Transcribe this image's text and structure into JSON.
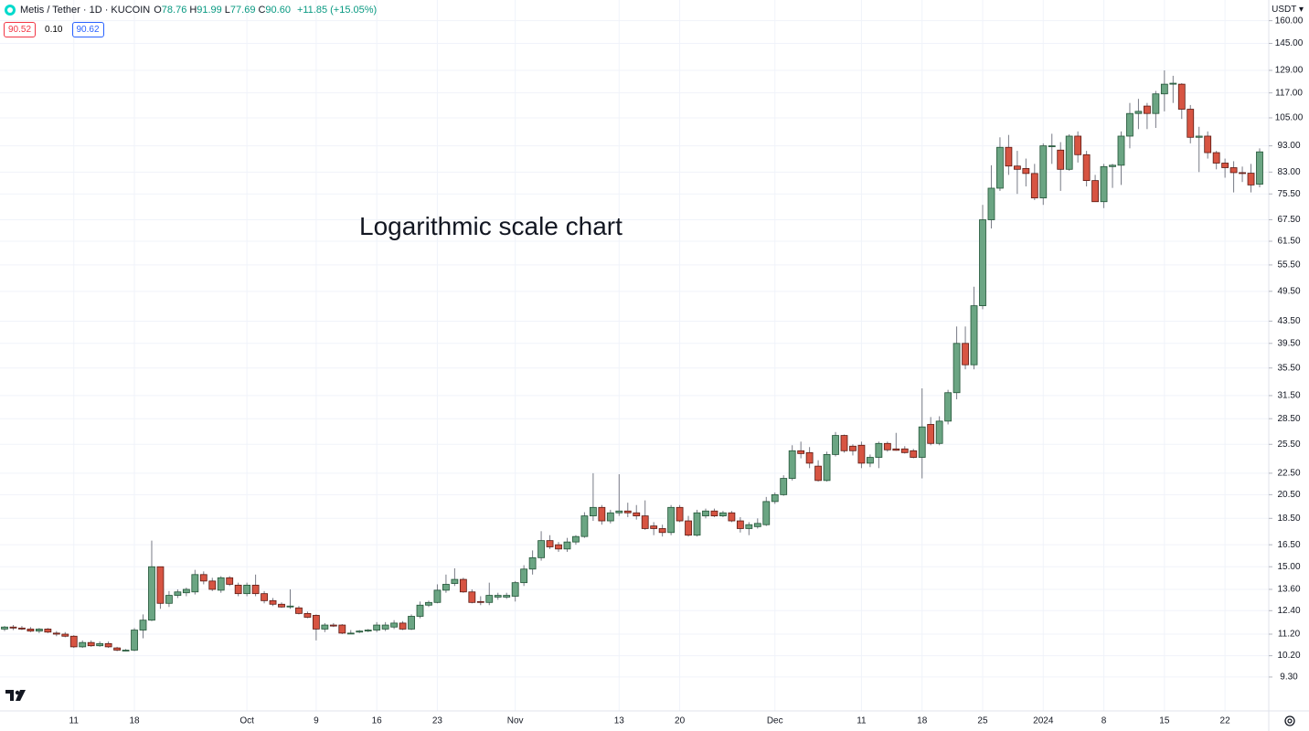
{
  "chart_data": {
    "type": "candlestick",
    "symbol": "Metis / Tether · 1D · KUCOIN",
    "header_ohlc": [
      {
        "key": "O",
        "value": "78.76"
      },
      {
        "key": "H",
        "value": "91.99"
      },
      {
        "key": "L",
        "value": "77.69"
      },
      {
        "key": "C",
        "value": "90.60"
      }
    ],
    "change": "+11.85 (+15.05%)",
    "buttons": [
      "90.52",
      "0.10",
      "90.62"
    ],
    "annotation": "Logarithmic scale chart",
    "currency": "USDT",
    "log": true,
    "grid": true,
    "up_color": "#6ba583",
    "down_color": "#d75442",
    "categories": [
      null,
      null,
      null,
      null,
      null,
      null,
      null,
      null,
      "11",
      null,
      null,
      null,
      null,
      null,
      null,
      "18",
      null,
      null,
      null,
      null,
      null,
      null,
      null,
      null,
      null,
      null,
      null,
      null,
      "Oct",
      null,
      null,
      null,
      null,
      null,
      null,
      null,
      "9",
      null,
      null,
      null,
      null,
      null,
      null,
      "16",
      null,
      null,
      null,
      null,
      null,
      null,
      "23",
      null,
      null,
      null,
      null,
      null,
      null,
      null,
      null,
      "Nov",
      null,
      null,
      null,
      null,
      null,
      null,
      null,
      null,
      null,
      null,
      null,
      "13",
      null,
      null,
      null,
      null,
      null,
      null,
      "20",
      null,
      null,
      null,
      null,
      null,
      null,
      null,
      null,
      null,
      null,
      "Dec",
      null,
      null,
      null,
      null,
      null,
      null,
      null,
      null,
      null,
      "11",
      null,
      null,
      null,
      null,
      null,
      null,
      "18",
      null,
      null,
      null,
      null,
      null,
      null,
      "25",
      null,
      null,
      null,
      null,
      null,
      null,
      "2024",
      null,
      null,
      null,
      null,
      null,
      null,
      "8",
      null,
      null,
      null,
      null,
      null,
      null,
      "15",
      null,
      null,
      null,
      null,
      null,
      null,
      "22",
      null,
      null,
      null,
      null
    ],
    "open": [
      11.45,
      11.55,
      11.5,
      11.45,
      11.35,
      11.45,
      11.25,
      11.2,
      11.1,
      10.6,
      10.8,
      10.65,
      10.75,
      10.55,
      10.45,
      10.45,
      11.4,
      11.9,
      15.0,
      12.8,
      13.25,
      13.4,
      13.45,
      14.5,
      14.1,
      13.55,
      14.3,
      13.85,
      13.35,
      13.85,
      13.35,
      12.95,
      12.75,
      12.6,
      12.55,
      12.25,
      12.15,
      11.45,
      11.65,
      11.65,
      11.25,
      11.3,
      11.35,
      11.4,
      11.45,
      11.55,
      11.75,
      11.45,
      12.1,
      12.7,
      12.85,
      13.55,
      13.95,
      14.2,
      13.45,
      12.9,
      12.85,
      13.15,
      13.15,
      13.2,
      14.0,
      14.85,
      15.6,
      16.8,
      16.5,
      16.2,
      16.7,
      17.1,
      18.7,
      19.4,
      18.3,
      18.95,
      19.1,
      18.95,
      18.7,
      17.9,
      17.7,
      17.4,
      19.4,
      18.3,
      17.2,
      18.7,
      19.1,
      18.7,
      18.95,
      18.3,
      17.7,
      17.85,
      18.0,
      19.9,
      20.5,
      22.0,
      24.8,
      24.6,
      23.2,
      21.8,
      24.4,
      26.5,
      25.3,
      25.4,
      23.5,
      24.1,
      25.6,
      25.0,
      25.0,
      24.8,
      24.1,
      27.8,
      25.6,
      28.2,
      31.9,
      39.5,
      36.0,
      46.5,
      67.5,
      77.4,
      92.4,
      85.2,
      84.3,
      82.5,
      74.2,
      93.0,
      91.3,
      84.0,
      97.0,
      89.5,
      80.0,
      73.0,
      85.0,
      85.5,
      97.0,
      107.0,
      110.5,
      107.0,
      116.5,
      121.5,
      121.5,
      109.0,
      96.5,
      97.0,
      90.3,
      86.3,
      84.6,
      82.8,
      82.6,
      78.76
    ],
    "high": [
      11.6,
      11.65,
      11.6,
      11.55,
      11.5,
      11.5,
      11.35,
      11.3,
      11.15,
      10.9,
      10.9,
      10.85,
      10.85,
      10.6,
      10.5,
      11.5,
      12.2,
      16.8,
      15.0,
      13.5,
      13.6,
      13.7,
      14.8,
      14.7,
      14.3,
      14.4,
      14.4,
      14.0,
      14.0,
      14.5,
      13.5,
      13.1,
      12.85,
      13.6,
      12.65,
      12.35,
      12.2,
      11.75,
      11.75,
      11.7,
      11.4,
      11.4,
      11.45,
      11.8,
      11.8,
      11.9,
      11.85,
      12.2,
      12.9,
      12.95,
      13.9,
      14.5,
      14.9,
      14.3,
      13.6,
      13.2,
      14.0,
      13.4,
      13.4,
      14.1,
      15.1,
      16.1,
      17.5,
      17.2,
      16.7,
      17.0,
      17.2,
      19.0,
      22.5,
      19.6,
      19.2,
      22.4,
      19.8,
      19.6,
      20.0,
      18.2,
      18.0,
      19.6,
      19.6,
      18.7,
      19.2,
      19.3,
      19.3,
      19.1,
      19.1,
      18.6,
      18.2,
      18.5,
      20.3,
      20.7,
      22.3,
      25.4,
      25.8,
      25.2,
      23.8,
      24.7,
      26.9,
      26.6,
      25.5,
      25.8,
      24.4,
      25.8,
      25.8,
      26.8,
      25.3,
      25.0,
      32.5,
      28.7,
      28.8,
      32.3,
      42.5,
      42.5,
      50.5,
      72.0,
      85.5,
      96.5,
      97.5,
      91.0,
      88.0,
      86.0,
      94.0,
      98.0,
      94.5,
      97.8,
      99.0,
      91.0,
      82.0,
      86.0,
      86.0,
      99.0,
      112.0,
      114.0,
      112.0,
      118.0,
      129.0,
      126.0,
      122.0,
      111.0,
      101.0,
      99.0,
      91.0,
      88.0,
      87.0,
      85.0,
      86.0,
      91.99
    ],
    "low": [
      11.35,
      11.4,
      11.4,
      11.3,
      11.25,
      11.25,
      11.1,
      11.05,
      10.55,
      10.55,
      10.6,
      10.6,
      10.55,
      10.4,
      10.4,
      10.4,
      11.0,
      11.85,
      12.5,
      12.6,
      13.1,
      13.2,
      13.3,
      13.9,
      13.5,
      13.4,
      13.8,
      13.2,
      13.2,
      13.2,
      12.8,
      12.65,
      12.55,
      12.5,
      12.2,
      12.0,
      10.9,
      11.3,
      11.55,
      11.2,
      11.2,
      11.25,
      11.3,
      11.3,
      11.35,
      11.45,
      11.4,
      11.4,
      12.0,
      12.6,
      12.8,
      13.4,
      13.8,
      13.4,
      12.8,
      12.7,
      12.7,
      13.0,
      13.05,
      12.9,
      13.8,
      14.5,
      15.4,
      16.2,
      16.0,
      16.0,
      16.5,
      17.0,
      18.3,
      18.0,
      18.1,
      18.7,
      18.6,
      18.4,
      17.6,
      17.2,
      17.1,
      17.2,
      18.2,
      17.1,
      17.1,
      18.5,
      18.6,
      18.6,
      18.2,
      17.4,
      17.2,
      17.7,
      17.9,
      19.7,
      20.4,
      21.8,
      24.0,
      23.0,
      21.7,
      21.7,
      24.2,
      24.6,
      24.3,
      23.0,
      23.1,
      23.0,
      24.7,
      24.8,
      24.5,
      24.0,
      22.0,
      25.4,
      25.4,
      27.8,
      31.0,
      35.3,
      35.3,
      45.8,
      65.0,
      76.5,
      82.0,
      75.5,
      78.0,
      73.5,
      72.0,
      86.0,
      76.5,
      83.5,
      86.5,
      78.0,
      73.0,
      71.0,
      77.5,
      78.5,
      92.0,
      100.0,
      100.0,
      100.5,
      108.0,
      112.0,
      104.5,
      94.0,
      83.0,
      88.0,
      84.0,
      81.0,
      76.0,
      79.5,
      76.0,
      77.69
    ],
    "close": [
      11.55,
      11.5,
      11.45,
      11.35,
      11.45,
      11.3,
      11.2,
      11.1,
      10.6,
      10.8,
      10.65,
      10.75,
      10.6,
      10.45,
      10.45,
      11.4,
      11.9,
      15.0,
      12.8,
      13.25,
      13.45,
      13.6,
      14.5,
      14.1,
      13.6,
      14.3,
      13.9,
      13.35,
      13.85,
      13.35,
      12.95,
      12.75,
      12.6,
      12.65,
      12.25,
      12.05,
      11.45,
      11.65,
      11.6,
      11.25,
      11.25,
      11.35,
      11.4,
      11.65,
      11.65,
      11.75,
      11.45,
      12.1,
      12.7,
      12.85,
      13.55,
      13.9,
      14.2,
      13.45,
      12.85,
      12.85,
      13.25,
      13.25,
      13.25,
      14.0,
      14.85,
      15.6,
      16.8,
      16.35,
      16.2,
      16.7,
      17.1,
      18.7,
      19.4,
      18.3,
      18.95,
      19.1,
      18.95,
      18.7,
      17.7,
      17.7,
      17.4,
      19.4,
      18.3,
      17.2,
      18.95,
      19.1,
      18.7,
      18.95,
      18.3,
      17.7,
      18.0,
      18.1,
      19.9,
      20.5,
      22.0,
      24.8,
      24.5,
      23.5,
      21.8,
      24.4,
      26.5,
      24.8,
      24.8,
      23.5,
      24.1,
      25.6,
      24.9,
      24.85,
      24.6,
      24.1,
      27.5,
      25.6,
      28.2,
      31.9,
      39.5,
      36.0,
      46.5,
      67.5,
      77.4,
      92.4,
      85.2,
      84.0,
      82.5,
      74.2,
      93.0,
      93.0,
      84.0,
      97.0,
      89.5,
      80.0,
      73.0,
      85.0,
      85.5,
      97.0,
      107.0,
      108.0,
      107.0,
      116.5,
      121.5,
      122.0,
      109.0,
      96.5,
      97.0,
      90.3,
      86.3,
      84.6,
      82.8,
      82.6,
      78.5,
      90.6
    ],
    "ylim": [
      8.03,
      175
    ],
    "yticks": [
      {
        "value": 160,
        "label": "160.00"
      },
      {
        "value": 145,
        "label": "145.00"
      },
      {
        "value": 129,
        "label": "129.00"
      },
      {
        "value": 117,
        "label": "117.00"
      },
      {
        "value": 105,
        "label": "105.00"
      },
      {
        "value": 93,
        "label": "93.00"
      },
      {
        "value": 83,
        "label": "83.00"
      },
      {
        "value": 75.5,
        "label": "75.50"
      },
      {
        "value": 67.5,
        "label": "67.50"
      },
      {
        "value": 61.5,
        "label": "61.50"
      },
      {
        "value": 55.5,
        "label": "55.50"
      },
      {
        "value": 49.5,
        "label": "49.50"
      },
      {
        "value": 43.5,
        "label": "43.50"
      },
      {
        "value": 39.5,
        "label": "39.50"
      },
      {
        "value": 35.5,
        "label": "35.50"
      },
      {
        "value": 31.5,
        "label": "31.50"
      },
      {
        "value": 28.5,
        "label": "28.50"
      },
      {
        "value": 25.5,
        "label": "25.50"
      },
      {
        "value": 22.5,
        "label": "22.50"
      },
      {
        "value": 20.5,
        "label": "20.50"
      },
      {
        "value": 18.5,
        "label": "18.50"
      },
      {
        "value": 16.5,
        "label": "16.50"
      },
      {
        "value": 15,
        "label": "15.00"
      },
      {
        "value": 13.6,
        "label": "13.60"
      },
      {
        "value": 12.4,
        "label": "12.40"
      },
      {
        "value": 11.2,
        "label": "11.20"
      },
      {
        "value": 10.2,
        "label": "10.20"
      },
      {
        "value": 9.3,
        "label": "9.30"
      }
    ]
  }
}
